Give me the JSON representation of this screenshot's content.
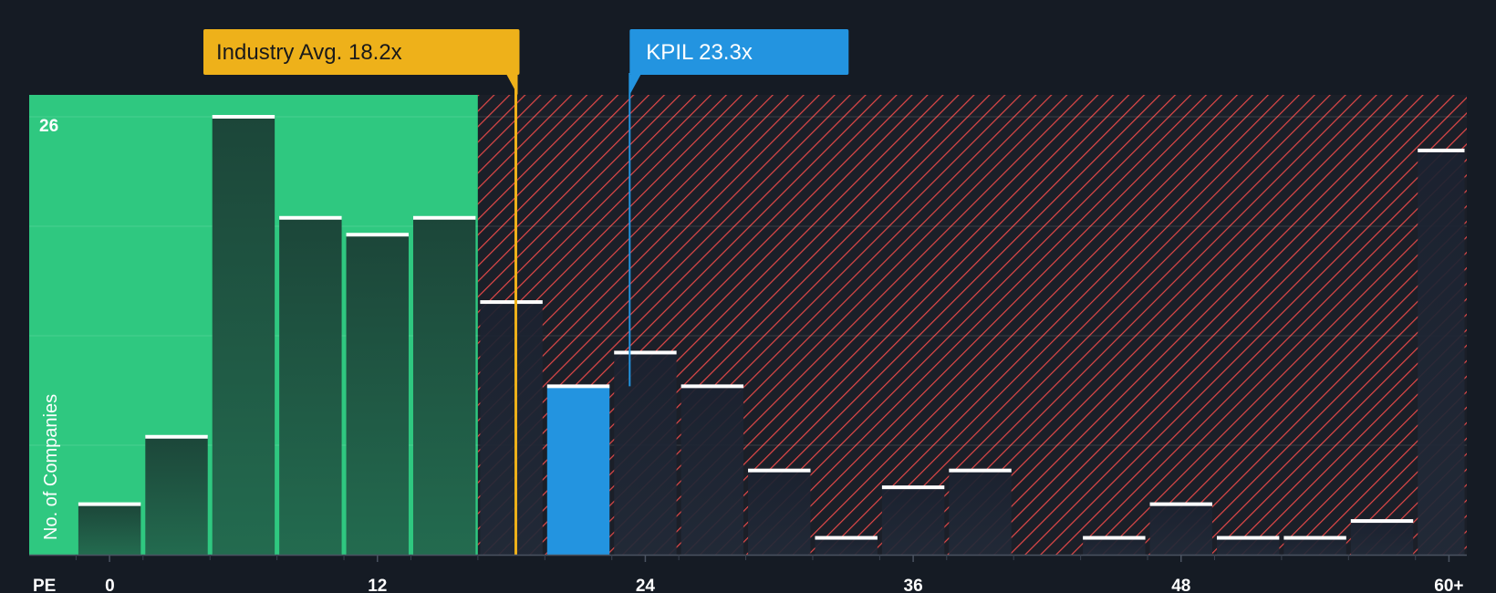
{
  "chart_data": {
    "type": "bar",
    "title": "",
    "xlabel": "PE",
    "ylabel": "No. of Companies",
    "xlim": [
      -3.6,
      60.8
    ],
    "ylim": [
      0,
      27.3
    ],
    "bin_width": 3,
    "x_ticks": [
      {
        "value": 0,
        "label": "0"
      },
      {
        "value": 12,
        "label": "12"
      },
      {
        "value": 24,
        "label": "24"
      },
      {
        "value": 36,
        "label": "36"
      },
      {
        "value": 48,
        "label": "48"
      },
      {
        "value": 60,
        "label": "60+"
      }
    ],
    "y_max_label": "26",
    "y_gridlines": [
      6.5,
      13,
      19.5,
      26
    ],
    "bins": [
      {
        "x0": -1.5,
        "x1": 1.5,
        "count": 3
      },
      {
        "x0": 1.5,
        "x1": 4.5,
        "count": 7
      },
      {
        "x0": 4.5,
        "x1": 7.5,
        "count": 26
      },
      {
        "x0": 7.5,
        "x1": 10.5,
        "count": 20
      },
      {
        "x0": 10.5,
        "x1": 13.5,
        "count": 19
      },
      {
        "x0": 13.5,
        "x1": 16.5,
        "count": 20
      },
      {
        "x0": 16.5,
        "x1": 19.5,
        "count": 15
      },
      {
        "x0": 19.5,
        "x1": 22.5,
        "count": 10,
        "highlight": true
      },
      {
        "x0": 22.5,
        "x1": 25.5,
        "count": 12
      },
      {
        "x0": 25.5,
        "x1": 28.5,
        "count": 10
      },
      {
        "x0": 28.5,
        "x1": 31.5,
        "count": 5
      },
      {
        "x0": 31.5,
        "x1": 34.5,
        "count": 1
      },
      {
        "x0": 34.5,
        "x1": 37.5,
        "count": 4
      },
      {
        "x0": 37.5,
        "x1": 40.5,
        "count": 5
      },
      {
        "x0": 43.5,
        "x1": 46.5,
        "count": 1
      },
      {
        "x0": 46.5,
        "x1": 49.5,
        "count": 3
      },
      {
        "x0": 49.5,
        "x1": 52.5,
        "count": 1
      },
      {
        "x0": 52.5,
        "x1": 55.5,
        "count": 1
      },
      {
        "x0": 55.5,
        "x1": 58.5,
        "count": 2
      },
      {
        "x0": 58.5,
        "x1": 60.8,
        "count": 24
      }
    ],
    "industry_avg": {
      "value": 18.2,
      "label": "Industry Avg. 18.2x"
    },
    "company": {
      "name": "KPIL",
      "value": 23.3,
      "label": "KPIL 23.3x"
    },
    "colors": {
      "background": "#151b24",
      "green_zone": "#2fc880",
      "green_bar": "#1d4a3c",
      "dark_bar": "#1b2230",
      "hatch": "#e34848",
      "highlight_bar": "#2394e0",
      "industry_label": "#eeb11a",
      "company_label": "#2394e0",
      "bar_cap": "#ffffff"
    }
  }
}
